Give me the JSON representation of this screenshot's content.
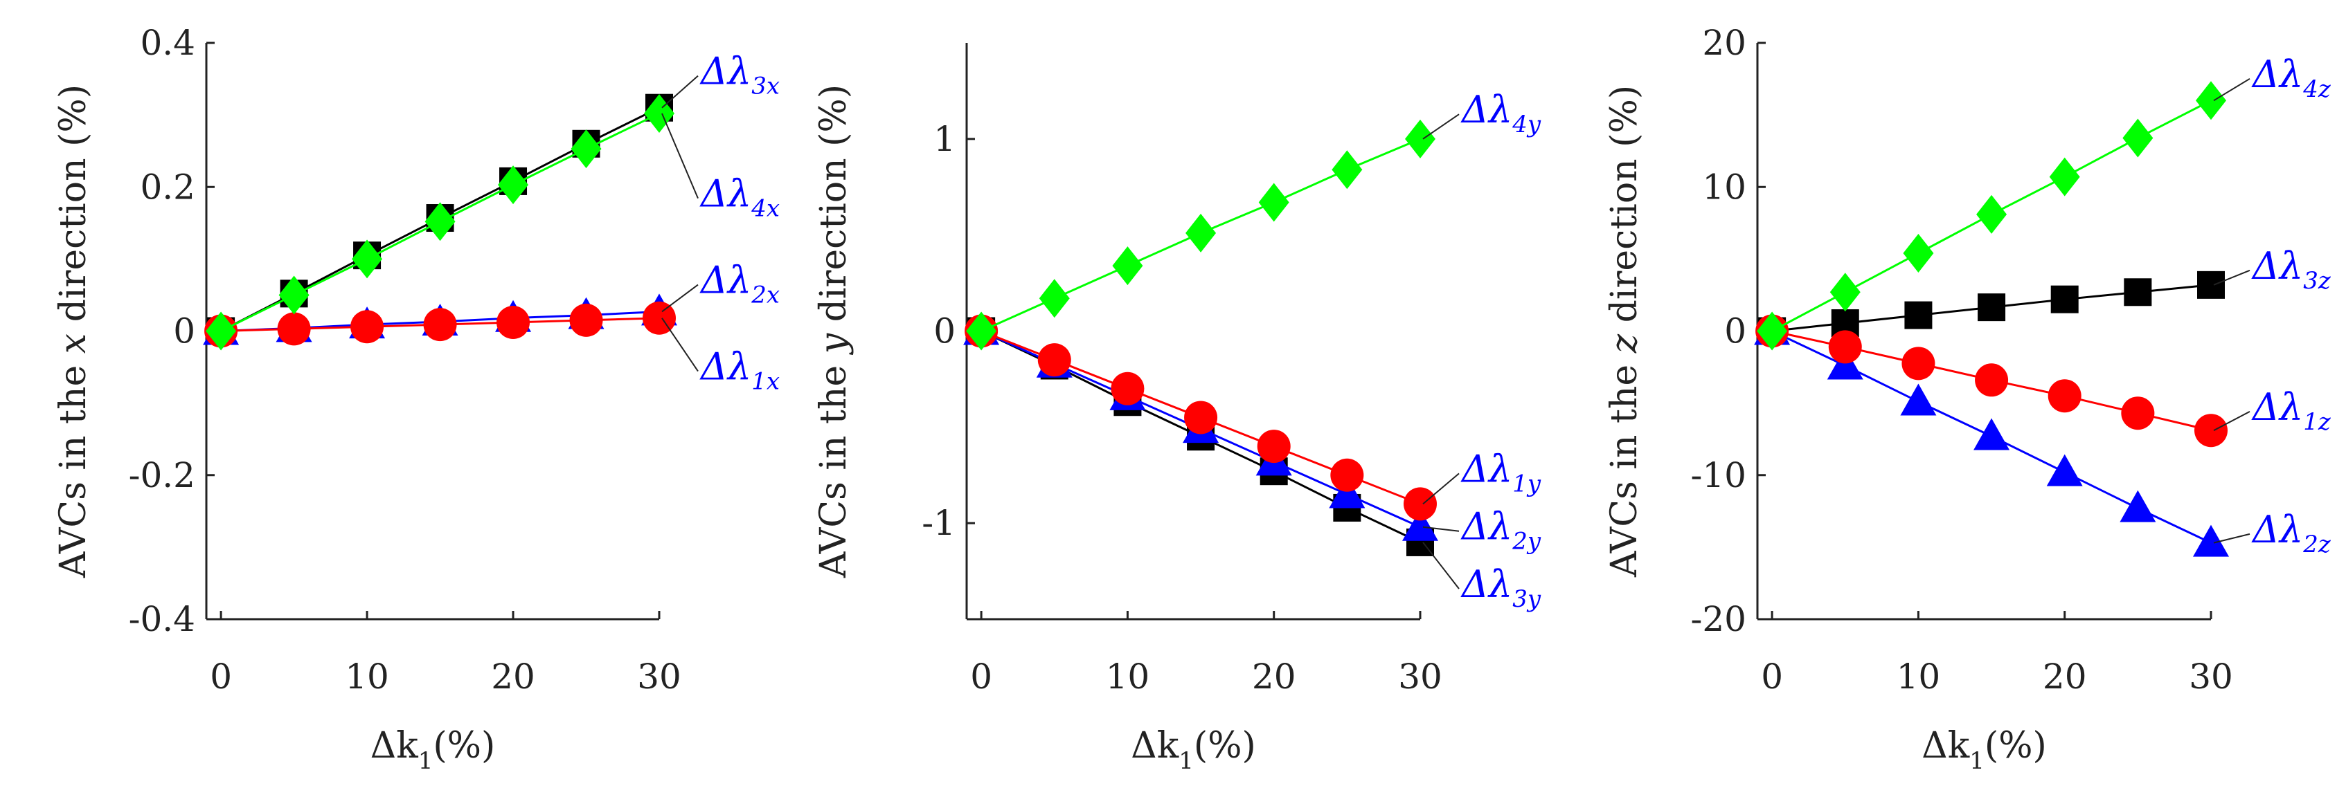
{
  "chart_data": [
    {
      "type": "line",
      "xlabel": "Δk1(%)",
      "ylabel": "AVCs in the x direction (%)",
      "ylabel_parts": [
        "AVCs in the ",
        "x",
        " direction (%)"
      ],
      "xlabel_parts": {
        "delta": "Δk",
        "sub": "1",
        "rest": "(%)"
      },
      "x": [
        0,
        5,
        10,
        15,
        20,
        25,
        30
      ],
      "xlim": [
        -1,
        30
      ],
      "ylim": [
        -0.4,
        0.4
      ],
      "xticks": [
        0,
        10,
        20,
        30
      ],
      "xtick_labels": [
        "0",
        "10",
        "20",
        "30"
      ],
      "yticks": [
        -0.4,
        -0.2,
        0,
        0.2,
        0.4
      ],
      "ytick_labels": [
        "-0.4",
        "-0.2",
        "0",
        "0.2",
        "0.4"
      ],
      "series": [
        {
          "name": "Δλ1x",
          "label": "Δλ",
          "sub": "1x",
          "color": "#ff0000",
          "marker": "circle",
          "values": [
            0,
            0.003,
            0.006,
            0.009,
            0.012,
            0.015,
            0.018
          ]
        },
        {
          "name": "Δλ2x",
          "label": "Δλ",
          "sub": "2x",
          "color": "#0000ff",
          "marker": "triangle",
          "values": [
            0,
            0.004,
            0.009,
            0.013,
            0.018,
            0.022,
            0.027
          ]
        },
        {
          "name": "Δλ3x",
          "label": "Δλ",
          "sub": "3x",
          "color": "#000000",
          "marker": "square",
          "values": [
            0,
            0.052,
            0.105,
            0.157,
            0.208,
            0.26,
            0.31
          ]
        },
        {
          "name": "Δλ4x",
          "label": "Δλ",
          "sub": "4x",
          "color": "#00ff00",
          "marker": "diamond",
          "values": [
            0,
            0.05,
            0.1,
            0.152,
            0.203,
            0.253,
            0.302
          ]
        }
      ],
      "legend_labels": [
        {
          "series": "Δλ3x",
          "anchor_y": 0.31,
          "label_y": 0.36
        },
        {
          "series": "Δλ4x",
          "anchor_y": 0.302,
          "label_y": 0.19
        },
        {
          "series": "Δλ2x",
          "anchor_y": 0.027,
          "label_y": 0.07
        },
        {
          "series": "Δλ1x",
          "anchor_y": 0.018,
          "label_y": -0.05
        }
      ]
    },
    {
      "type": "line",
      "xlabel": "Δk1(%)",
      "ylabel": "AVCs in the y direction (%)",
      "ylabel_parts": [
        "AVCs in the ",
        "y",
        " direction (%)"
      ],
      "xlabel_parts": {
        "delta": "Δk",
        "sub": "1",
        "rest": "(%)"
      },
      "x": [
        0,
        5,
        10,
        15,
        20,
        25,
        30
      ],
      "xlim": [
        -1,
        30
      ],
      "ylim": [
        -1.5,
        1.5
      ],
      "xticks": [
        0,
        10,
        20,
        30
      ],
      "xtick_labels": [
        "0",
        "10",
        "20",
        "30"
      ],
      "yticks": [
        -1,
        0,
        1
      ],
      "ytick_labels": [
        "-1",
        "0",
        "1"
      ],
      "series": [
        {
          "name": "Δλ1y",
          "label": "Δλ",
          "sub": "1y",
          "color": "#ff0000",
          "marker": "circle",
          "values": [
            0,
            -0.15,
            -0.3,
            -0.45,
            -0.6,
            -0.75,
            -0.9
          ]
        },
        {
          "name": "Δλ2y",
          "label": "Δλ",
          "sub": "2y",
          "color": "#0000ff",
          "marker": "triangle",
          "values": [
            0,
            -0.17,
            -0.34,
            -0.51,
            -0.68,
            -0.85,
            -1.02
          ]
        },
        {
          "name": "Δλ3y",
          "label": "Δλ",
          "sub": "3y",
          "color": "#000000",
          "marker": "square",
          "values": [
            0,
            -0.18,
            -0.37,
            -0.55,
            -0.73,
            -0.92,
            -1.1
          ]
        },
        {
          "name": "Δλ4y",
          "label": "Δλ",
          "sub": "4y",
          "color": "#00ff00",
          "marker": "diamond",
          "values": [
            0,
            0.17,
            0.34,
            0.51,
            0.67,
            0.84,
            1.0
          ]
        }
      ],
      "legend_labels": [
        {
          "series": "Δλ4y",
          "anchor_y": 1.0,
          "label_y": 1.15
        },
        {
          "series": "Δλ1y",
          "anchor_y": -0.9,
          "label_y": -0.72
        },
        {
          "series": "Δλ2y",
          "anchor_y": -1.02,
          "label_y": -1.02
        },
        {
          "series": "Δλ3y",
          "anchor_y": -1.1,
          "label_y": -1.32
        }
      ]
    },
    {
      "type": "line",
      "xlabel": "Δk1(%)",
      "ylabel": "AVCs in the z direction (%)",
      "ylabel_parts": [
        "AVCs in the ",
        "z",
        " direction (%)"
      ],
      "xlabel_parts": {
        "delta": "Δk",
        "sub": "1",
        "rest": "(%)"
      },
      "x": [
        0,
        5,
        10,
        15,
        20,
        25,
        30
      ],
      "xlim": [
        -1,
        30
      ],
      "ylim": [
        -20,
        20
      ],
      "xticks": [
        0,
        10,
        20,
        30
      ],
      "xtick_labels": [
        "0",
        "10",
        "20",
        "30"
      ],
      "yticks": [
        -20,
        -10,
        0,
        10,
        20
      ],
      "ytick_labels": [
        "-20",
        "-10",
        "0",
        "10",
        "20"
      ],
      "series": [
        {
          "name": "Δλ1z",
          "label": "Δλ",
          "sub": "1z",
          "color": "#ff0000",
          "marker": "circle",
          "values": [
            0,
            -1.1,
            -2.25,
            -3.4,
            -4.5,
            -5.7,
            -6.9
          ]
        },
        {
          "name": "Δλ2z",
          "label": "Δλ",
          "sub": "2z",
          "color": "#0000ff",
          "marker": "triangle",
          "values": [
            0,
            -2.4,
            -4.9,
            -7.3,
            -9.8,
            -12.3,
            -14.7
          ]
        },
        {
          "name": "Δλ3z",
          "label": "Δλ",
          "sub": "3z",
          "color": "#000000",
          "marker": "square",
          "values": [
            0,
            0.55,
            1.1,
            1.65,
            2.2,
            2.7,
            3.2
          ]
        },
        {
          "name": "Δλ4z",
          "label": "Δλ",
          "sub": "4z",
          "color": "#00ff00",
          "marker": "diamond",
          "values": [
            0,
            2.7,
            5.4,
            8.1,
            10.7,
            13.4,
            16.0
          ]
        }
      ],
      "legend_labels": [
        {
          "series": "Δλ4z",
          "anchor_y": 16.0,
          "label_y": 17.8
        },
        {
          "series": "Δλ3z",
          "anchor_y": 3.2,
          "label_y": 4.5
        },
        {
          "series": "Δλ1z",
          "anchor_y": -6.9,
          "label_y": -5.3
        },
        {
          "series": "Δλ2z",
          "anchor_y": -14.7,
          "label_y": -13.8
        }
      ]
    }
  ],
  "legend_text_color": "#0000ff"
}
